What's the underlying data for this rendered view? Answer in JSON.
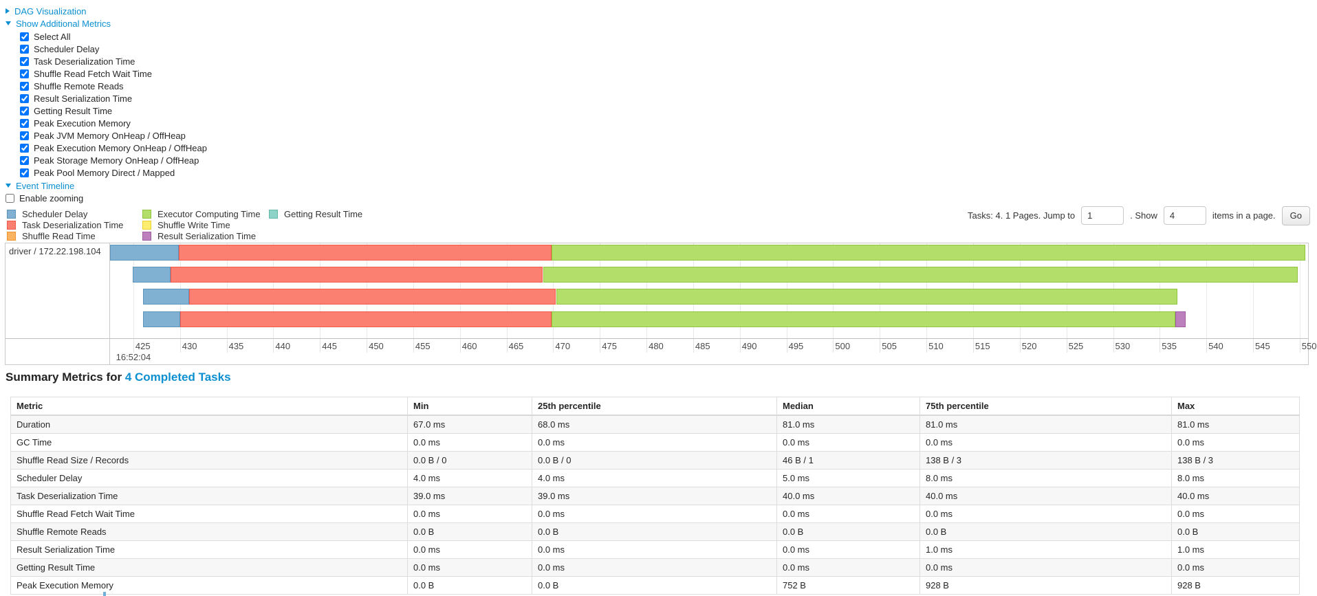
{
  "controls": {
    "dag_label": "DAG Visualization",
    "metrics_label": "Show Additional Metrics",
    "checkbox_items": [
      "Select All",
      "Scheduler Delay",
      "Task Deserialization Time",
      "Shuffle Read Fetch Wait Time",
      "Shuffle Remote Reads",
      "Result Serialization Time",
      "Getting Result Time",
      "Peak Execution Memory",
      "Peak JVM Memory OnHeap / OffHeap",
      "Peak Execution Memory OnHeap / OffHeap",
      "Peak Storage Memory OnHeap / OffHeap",
      "Peak Pool Memory Direct / Mapped"
    ],
    "checkboxes_checked": true,
    "event_timeline_label": "Event Timeline",
    "enable_zooming_label": "Enable zooming",
    "enable_zooming_checked": false,
    "link_color": "#0c90d1"
  },
  "pagination": {
    "tasks_text": "Tasks: 4. 1 Pages. Jump to",
    "jump_value": "1",
    "show_text": ". Show",
    "show_value": "4",
    "items_text": "items in a page.",
    "go_label": "Go"
  },
  "chart_data": {
    "type": "timeline",
    "title": "Event Timeline",
    "group_label": "driver / 172.22.198.104",
    "unit": "ms",
    "x_axis": {
      "domain": [
        422.5,
        550.9
      ],
      "ticks": [
        425,
        430,
        435,
        440,
        445,
        450,
        455,
        460,
        465,
        470,
        475,
        480,
        485,
        490,
        495,
        500,
        505,
        510,
        515,
        520,
        525,
        530,
        535,
        540,
        545,
        550
      ],
      "major_label": {
        "text": "16:52:04",
        "at": 425
      },
      "grid": true
    },
    "palette": {
      "scheduler-delay": {
        "fill": "#80B1D3",
        "border": "#5E94BC"
      },
      "task-deserialization-time": {
        "fill": "#FB8072",
        "border": "#F2594A"
      },
      "shuffle-read-time": {
        "fill": "#FDB462",
        "border": "#F0922E"
      },
      "executor-computing-time": {
        "fill": "#B3DE69",
        "border": "#8FC63D"
      },
      "shuffle-write-time": {
        "fill": "#FFED6F",
        "border": "#EDD22F"
      },
      "result-serialization-time": {
        "fill": "#BC80BD",
        "border": "#A15CA3"
      },
      "getting-result-time": {
        "fill": "#8DD3C7",
        "border": "#65B8A9"
      }
    },
    "legend_columns": [
      [
        {
          "key": "scheduler-delay",
          "label": "Scheduler Delay"
        },
        {
          "key": "task-deserialization-time",
          "label": "Task Deserialization Time"
        },
        {
          "key": "shuffle-read-time",
          "label": "Shuffle Read Time"
        }
      ],
      [
        {
          "key": "executor-computing-time",
          "label": "Executor Computing Time"
        },
        {
          "key": "shuffle-write-time",
          "label": "Shuffle Write Time"
        },
        {
          "key": "result-serialization-time",
          "label": "Result Serialization Time"
        }
      ],
      [
        {
          "key": "getting-result-time",
          "label": "Getting Result Time"
        }
      ]
    ],
    "tasks": [
      {
        "segments": [
          {
            "name": "scheduler-delay",
            "start": 422.5,
            "end": 429.9
          },
          {
            "name": "task-deserialization-time",
            "start": 429.9,
            "end": 469.8
          },
          {
            "name": "executor-computing-time",
            "start": 469.8,
            "end": 550.6
          }
        ]
      },
      {
        "segments": [
          {
            "name": "scheduler-delay",
            "start": 424.9,
            "end": 429.0
          },
          {
            "name": "task-deserialization-time",
            "start": 429.0,
            "end": 468.9
          },
          {
            "name": "executor-computing-time",
            "start": 468.9,
            "end": 549.8
          }
        ]
      },
      {
        "segments": [
          {
            "name": "scheduler-delay",
            "start": 426.0,
            "end": 431.0
          },
          {
            "name": "task-deserialization-time",
            "start": 431.0,
            "end": 470.3
          },
          {
            "name": "executor-computing-time",
            "start": 470.3,
            "end": 536.9
          }
        ]
      },
      {
        "segments": [
          {
            "name": "scheduler-delay",
            "start": 426.0,
            "end": 430.0
          },
          {
            "name": "task-deserialization-time",
            "start": 430.0,
            "end": 469.8
          },
          {
            "name": "executor-computing-time",
            "start": 469.8,
            "end": 536.7
          },
          {
            "name": "result-serialization-time",
            "start": 536.7,
            "end": 537.8
          }
        ]
      }
    ]
  },
  "summary": {
    "title_prefix": "Summary Metrics for ",
    "title_link": "4 Completed Tasks",
    "table": {
      "headers": [
        "Metric",
        "Min",
        "25th percentile",
        "Median",
        "75th percentile",
        "Max"
      ],
      "rows": [
        {
          "metric": "Duration",
          "values": [
            "67.0 ms",
            "68.0 ms",
            "81.0 ms",
            "81.0 ms",
            "81.0 ms"
          ]
        },
        {
          "metric": "GC Time",
          "values": [
            "0.0 ms",
            "0.0 ms",
            "0.0 ms",
            "0.0 ms",
            "0.0 ms"
          ]
        },
        {
          "metric": "Shuffle Read Size / Records",
          "values": [
            "0.0 B / 0",
            "0.0 B / 0",
            "46 B / 1",
            "138 B / 3",
            "138 B / 3"
          ]
        },
        {
          "metric": "Scheduler Delay",
          "values": [
            "4.0 ms",
            "4.0 ms",
            "5.0 ms",
            "8.0 ms",
            "8.0 ms"
          ]
        },
        {
          "metric": "Task Deserialization Time",
          "values": [
            "39.0 ms",
            "39.0 ms",
            "40.0 ms",
            "40.0 ms",
            "40.0 ms"
          ]
        },
        {
          "metric": "Shuffle Read Fetch Wait Time",
          "values": [
            "0.0 ms",
            "0.0 ms",
            "0.0 ms",
            "0.0 ms",
            "0.0 ms"
          ]
        },
        {
          "metric": "Shuffle Remote Reads",
          "values": [
            "0.0 B",
            "0.0 B",
            "0.0 B",
            "0.0 B",
            "0.0 B"
          ]
        },
        {
          "metric": "Result Serialization Time",
          "values": [
            "0.0 ms",
            "0.0 ms",
            "0.0 ms",
            "1.0 ms",
            "1.0 ms"
          ]
        },
        {
          "metric": "Getting Result Time",
          "values": [
            "0.0 ms",
            "0.0 ms",
            "0.0 ms",
            "0.0 ms",
            "0.0 ms"
          ]
        },
        {
          "metric": "Peak Execution Memory",
          "values": [
            "0.0 B",
            "0.0 B",
            "752 B",
            "928 B",
            "928 B"
          ]
        }
      ]
    }
  }
}
